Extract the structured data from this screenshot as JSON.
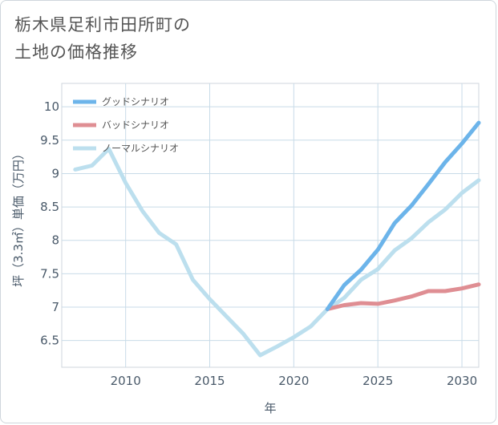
{
  "title_lines": [
    "栃木県足利市田所町の",
    "土地の価格推移"
  ],
  "chart_data": {
    "type": "line",
    "xlabel": "年",
    "ylabel": "坪（3.3㎡）単価（万円）",
    "xlim": [
      2006.2,
      2031
    ],
    "ylim": [
      6.1,
      10.35
    ],
    "x_ticks": [
      2010,
      2015,
      2020,
      2025,
      2030
    ],
    "y_ticks": [
      6.5,
      7,
      7.5,
      8,
      8.5,
      9,
      9.5,
      10
    ],
    "y_tick_labels": [
      "6.5",
      "7",
      "7.5",
      "8",
      "8.5",
      "9",
      "9.5",
      "10"
    ],
    "grid": true,
    "legend_position": "top-left",
    "series": [
      {
        "name": "グッドシナリオ",
        "color": "#6cb4ea",
        "x": [
          2022,
          2023,
          2024,
          2025,
          2026,
          2027,
          2028,
          2029,
          2030,
          2031
        ],
        "y": [
          6.97,
          7.33,
          7.56,
          7.86,
          8.26,
          8.52,
          8.84,
          9.17,
          9.45,
          9.76
        ]
      },
      {
        "name": "バッドシナリオ",
        "color": "#df8e93",
        "x": [
          2022,
          2023,
          2024,
          2025,
          2026,
          2027,
          2028,
          2029,
          2030,
          2031
        ],
        "y": [
          6.97,
          7.03,
          7.06,
          7.05,
          7.1,
          7.16,
          7.24,
          7.24,
          7.28,
          7.34
        ]
      },
      {
        "name": "ノーマルシナリオ",
        "color": "#bcdfee",
        "x": [
          2007,
          2008,
          2009,
          2010,
          2011,
          2012,
          2013,
          2014,
          2015,
          2016,
          2017,
          2018,
          2019,
          2020,
          2021,
          2022,
          2023,
          2024,
          2025,
          2026,
          2027,
          2028,
          2029,
          2030,
          2031
        ],
        "y": [
          9.06,
          9.12,
          9.37,
          8.86,
          8.44,
          8.11,
          7.94,
          7.41,
          7.12,
          6.86,
          6.6,
          6.28,
          6.41,
          6.55,
          6.71,
          6.97,
          7.14,
          7.41,
          7.57,
          7.85,
          8.03,
          8.27,
          8.46,
          8.71,
          8.9
        ]
      }
    ]
  }
}
